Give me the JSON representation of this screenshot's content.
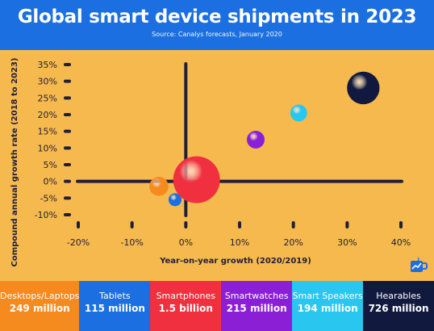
{
  "header": {
    "title": "Global smart device shipments in 2023",
    "subtitle": "Source: Canalys forecasts, January 2020"
  },
  "colors": {
    "header_bg": "#1b6fe0",
    "plot_bg": "#f6b94e",
    "axis": "#1f1f3a"
  },
  "chart_data": {
    "type": "scatter",
    "title": "Global smart device shipments in 2023",
    "subtitle": "Source: Canalys forecasts, January 2020",
    "xlabel": "Year-on-year growth (2020/2019)",
    "ylabel": "Compound annual growth rate (2018 to 2023)",
    "xlim": [
      -20,
      40
    ],
    "ylim": [
      -10,
      35
    ],
    "x_ticks": [
      "-20%",
      "-10%",
      "0%",
      "10%",
      "20%",
      "30%",
      "40%"
    ],
    "x_tick_values": [
      -20,
      -10,
      0,
      10,
      20,
      30,
      40
    ],
    "y_ticks": [
      "35%",
      "30%",
      "25%",
      "20%",
      "15%",
      "10%",
      "5%",
      "0%",
      "-5%",
      "-10%"
    ],
    "y_tick_values": [
      35,
      30,
      25,
      20,
      15,
      10,
      5,
      0,
      -5,
      -10
    ],
    "grid": false,
    "series": [
      {
        "name": "Desktops/Laptops",
        "x": -5,
        "y": -1.5,
        "size_million": 249,
        "color": "#f58a1f"
      },
      {
        "name": "Tablets",
        "x": -2,
        "y": -5.5,
        "size_million": 115,
        "color": "#1b6fe0"
      },
      {
        "name": "Smartphones",
        "x": 2,
        "y": 0.5,
        "size_million": 1500,
        "color": "#f0303f"
      },
      {
        "name": "Smartwatches",
        "x": 13,
        "y": 12.5,
        "size_million": 215,
        "color": "#8a1fd6"
      },
      {
        "name": "Smart Speakers",
        "x": 21,
        "y": 20.5,
        "size_million": 194,
        "color": "#29c7f0"
      },
      {
        "name": "Hearables",
        "x": 33,
        "y": 28,
        "size_million": 726,
        "color": "#12193f"
      }
    ]
  },
  "legend": [
    {
      "name": "Desktops/Laptops",
      "value": "249 million",
      "color": "#f58a1f"
    },
    {
      "name": "Tablets",
      "value": "115 million",
      "color": "#1b6fe0"
    },
    {
      "name": "Smartphones",
      "value": "1.5 billion",
      "color": "#f0303f"
    },
    {
      "name": "Smartwatches",
      "value": "215 million",
      "color": "#8a1fd6"
    },
    {
      "name": "Smart Speakers",
      "value": "194 million",
      "color": "#29c7f0"
    },
    {
      "name": "Hearables",
      "value": "726 million",
      "color": "#12193f"
    }
  ],
  "logo": {
    "icon": "chart-mug-icon"
  }
}
